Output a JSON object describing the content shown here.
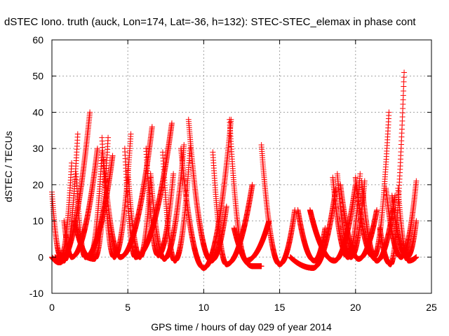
{
  "chart_data": {
    "type": "scatter",
    "title": "dSTEC Iono. truth (auck, Lon=174, Lat=-36, h=132): STEC-STEC_elemax in phase cont",
    "xlabel": "GPS time / hours of day 029 of year 2014",
    "ylabel": "dSTEC  / TECUs",
    "xlim": [
      0,
      25
    ],
    "ylim": [
      -10,
      60
    ],
    "xticks": [
      0,
      5,
      10,
      15,
      20,
      25
    ],
    "yticks": [
      -10,
      0,
      10,
      20,
      30,
      40,
      50,
      60
    ],
    "grid": true,
    "marker": "+",
    "color": "#ff0000",
    "arcs": [
      {
        "start": 0.0,
        "min": 0.6,
        "end": 1.3,
        "start_value": 18,
        "end_value": 26,
        "min_value": 0
      },
      {
        "start": 0.0,
        "min": 0.5,
        "end": 2.5,
        "start_value": 0,
        "end_value": 40,
        "min_value": -1.5
      },
      {
        "start": 0.2,
        "min": 0.8,
        "end": 1.7,
        "start_value": 0,
        "end_value": 34,
        "min_value": -1
      },
      {
        "start": 0.8,
        "min": 1.3,
        "end": 3.0,
        "start_value": 10,
        "end_value": 30,
        "min_value": 0
      },
      {
        "start": 1.6,
        "min": 2.2,
        "end": 4.0,
        "start_value": 23,
        "end_value": 28,
        "min_value": 0
      },
      {
        "start": 1.5,
        "min": 2.5,
        "end": 3.3,
        "start_value": 10,
        "end_value": 29,
        "min_value": 0
      },
      {
        "start": 2.3,
        "min": 2.8,
        "end": 3.7,
        "start_value": 0,
        "end_value": 33,
        "min_value": -0.5
      },
      {
        "start": 3.3,
        "min": 4.1,
        "end": 5.2,
        "start_value": 33,
        "end_value": 34,
        "min_value": 0
      },
      {
        "start": 3.4,
        "min": 4.5,
        "end": 6.6,
        "start_value": 27,
        "end_value": 36,
        "min_value": 0
      },
      {
        "start": 4.8,
        "min": 5.5,
        "end": 7.9,
        "start_value": 30,
        "end_value": 37,
        "min_value": 0
      },
      {
        "start": 5.0,
        "min": 5.8,
        "end": 6.5,
        "start_value": 24,
        "end_value": 22,
        "min_value": 0
      },
      {
        "start": 6.2,
        "min": 7.0,
        "end": 8.0,
        "start_value": 30,
        "end_value": 23,
        "min_value": 0.5
      },
      {
        "start": 6.5,
        "min": 7.4,
        "end": 8.7,
        "start_value": 23,
        "end_value": 31,
        "min_value": -0.5
      },
      {
        "start": 7.3,
        "min": 8.1,
        "end": 9.1,
        "start_value": 29,
        "end_value": 30,
        "min_value": -1
      },
      {
        "start": 8.5,
        "min": 10.0,
        "end": 11.8,
        "start_value": 30,
        "end_value": 38,
        "min_value": -3
      },
      {
        "start": 9.0,
        "min": 10.5,
        "end": 11.5,
        "start_value": 38,
        "end_value": 14,
        "min_value": -1
      },
      {
        "start": 10.6,
        "min": 11.5,
        "end": 13.2,
        "start_value": 29,
        "end_value": 20,
        "min_value": -2
      },
      {
        "start": 11.7,
        "min": 12.8,
        "end": 14.3,
        "start_value": 38,
        "end_value": 10,
        "min_value": -1
      },
      {
        "start": 12.0,
        "min": 13.2,
        "end": 13.8,
        "start_value": 8,
        "end_value": -2.5,
        "min_value": -2.5
      },
      {
        "start": 13.8,
        "min": 15.0,
        "end": 16.0,
        "start_value": 31,
        "end_value": 13,
        "min_value": -2
      },
      {
        "start": 15.7,
        "min": 17.2,
        "end": 18.7,
        "start_value": 0,
        "end_value": 19,
        "min_value": -3
      },
      {
        "start": 16.2,
        "min": 17.3,
        "end": 18.0,
        "start_value": 13,
        "end_value": 8,
        "min_value": -1
      },
      {
        "start": 17.0,
        "min": 18.6,
        "end": 20.0,
        "start_value": 13,
        "end_value": 20,
        "min_value": -1
      },
      {
        "start": 18.5,
        "min": 19.5,
        "end": 20.3,
        "start_value": 22,
        "end_value": 23,
        "min_value": 0
      },
      {
        "start": 18.8,
        "min": 19.7,
        "end": 20.6,
        "start_value": 23,
        "end_value": 21,
        "min_value": 0
      },
      {
        "start": 19.0,
        "min": 20.2,
        "end": 21.4,
        "start_value": 20,
        "end_value": 13,
        "min_value": -0.5
      },
      {
        "start": 20.0,
        "min": 21.2,
        "end": 22.2,
        "start_value": 22,
        "end_value": 40,
        "min_value": 0
      },
      {
        "start": 20.4,
        "min": 21.4,
        "end": 22.6,
        "start_value": 21,
        "end_value": 17,
        "min_value": -1
      },
      {
        "start": 21.6,
        "min": 22.3,
        "end": 23.2,
        "start_value": 8,
        "end_value": 51,
        "min_value": -2
      },
      {
        "start": 22.0,
        "min": 23.0,
        "end": 24.0,
        "start_value": 19,
        "end_value": 21,
        "min_value": 0
      },
      {
        "start": 22.4,
        "min": 23.4,
        "end": 24.0,
        "start_value": 17,
        "end_value": 10,
        "min_value": 0
      },
      {
        "start": 22.8,
        "min": 23.5,
        "end": 24.0,
        "start_value": 19,
        "end_value": 0,
        "min_value": -1
      }
    ]
  }
}
